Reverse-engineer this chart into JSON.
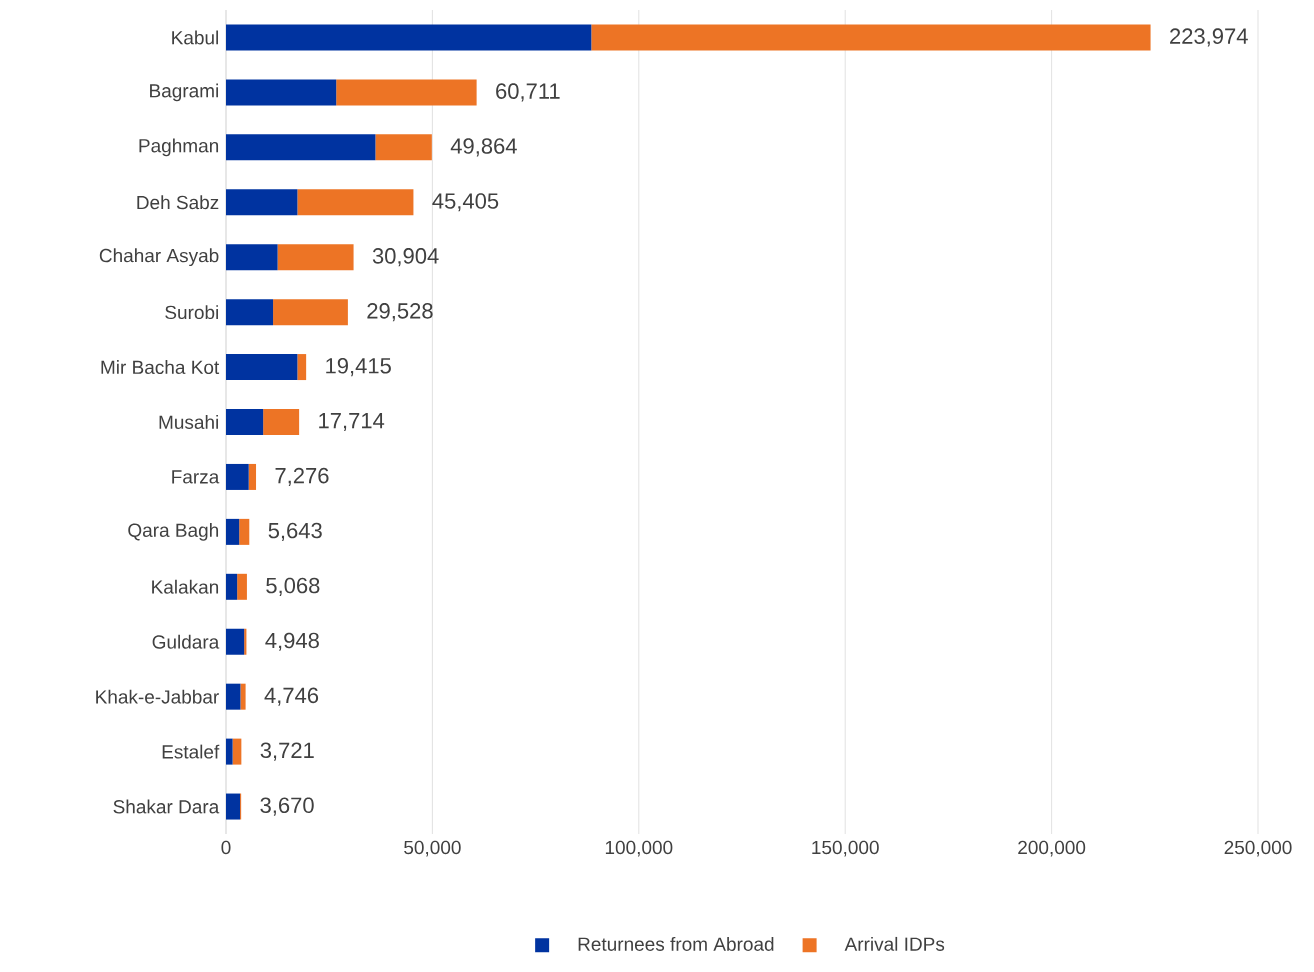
{
  "chart_data": {
    "type": "bar",
    "orientation": "horizontal",
    "stacked": true,
    "categories": [
      "Kabul",
      "Bagrami",
      "Paghman",
      "Deh Sabz",
      "Chahar Asyab",
      "Surobi",
      "Mir Bacha Kot",
      "Musahi",
      "Farza",
      "Qara Bagh",
      "Kalakan",
      "Guldara",
      "Khak-e-Jabbar",
      "Estalef",
      "Shakar Dara"
    ],
    "series": [
      {
        "name": "Returnees from Abroad",
        "color": "#0033a0",
        "values": [
          88500,
          26700,
          36200,
          17300,
          12500,
          11400,
          17300,
          9000,
          5500,
          3200,
          2700,
          4400,
          3500,
          1600,
          3400
        ]
      },
      {
        "name": "Arrival IDPs",
        "color": "#ed7425",
        "values": [
          135474,
          34011,
          13664,
          28105,
          18404,
          18128,
          2115,
          8714,
          1776,
          2443,
          2368,
          548,
          1246,
          2121,
          270
        ]
      }
    ],
    "totals": [
      "223,974",
      "60,711",
      "49,864",
      "45,405",
      "30,904",
      "29,528",
      "19,415",
      "17,714",
      "7,276",
      "5,643",
      "5,068",
      "4,948",
      "4,746",
      "3,721",
      "3,670"
    ],
    "xlim": [
      0,
      250000
    ],
    "xticks": [
      0,
      {
        "value": 50000,
        "label": "50,000"
      },
      {
        "value": 100000,
        "label": "100,000"
      },
      {
        "value": 150000,
        "label": "150,000"
      },
      {
        "value": 200000,
        "label": "200,000"
      },
      {
        "value": 250000,
        "label": "250,000"
      }
    ],
    "grid": "x",
    "legend": "bottom"
  }
}
